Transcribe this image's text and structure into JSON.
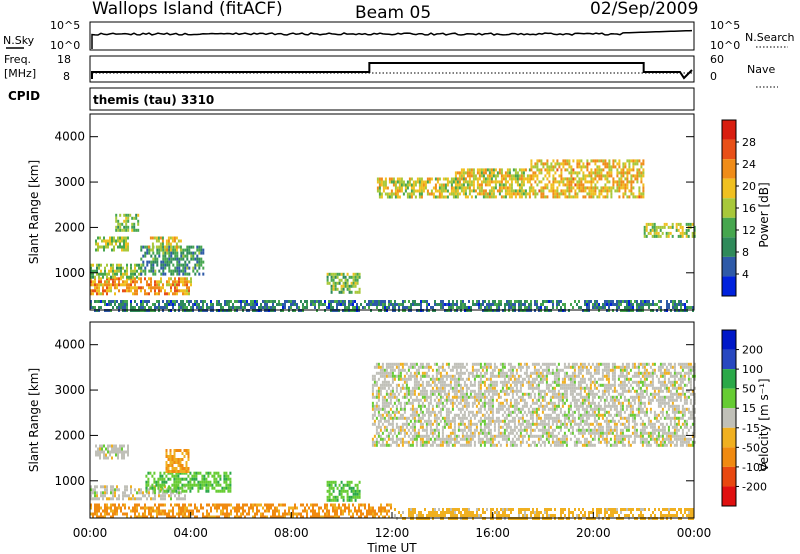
{
  "header": {
    "title": "Wallops Island (fitACF)",
    "beam": "Beam 05",
    "date": "02/Sep/2009"
  },
  "strips": {
    "nsky_label": "N.Sky",
    "nsearch_label": "N.Search",
    "nsky_ticks": [
      "10^5",
      "10^0"
    ],
    "nsearch_ticks": [
      "10^5",
      "10^0"
    ],
    "freq_label_1": "Freq.",
    "freq_label_2": "[MHz]",
    "freq_ticks": [
      "18",
      "8"
    ],
    "nave_label": "Nave",
    "nave_ticks": [
      "60",
      "0"
    ],
    "cpid_label": "CPID",
    "cpid_value": "themis (tau) 3310"
  },
  "colors": {
    "power": [
      "#0022dd",
      "#2e5aa8",
      "#2f8a5a",
      "#46a64e",
      "#a8c83a",
      "#f0c020",
      "#f08c18",
      "#e85018",
      "#d81e10"
    ],
    "velocity": [
      "#0018c8",
      "#2848c0",
      "#2aa848",
      "#66cc33",
      "#c0c0b8",
      "#f0b020",
      "#f08a10",
      "#e84810",
      "#e01010"
    ]
  },
  "chart_data": [
    {
      "type": "heatmap",
      "name": "power",
      "ylabel": "Slant Range [km]",
      "xlim": [
        "00:00",
        "24:00"
      ],
      "ylim": [
        180,
        4500
      ],
      "yticks": [
        "1000",
        "2000",
        "3000",
        "4000"
      ],
      "colorbar": {
        "label": "Power [dB]",
        "min": 0,
        "max": 32,
        "ticks": [
          "4",
          "8",
          "12",
          "16",
          "20",
          "24",
          "28"
        ]
      },
      "regions": [
        {
          "hours": [
            0.0,
            4.0
          ],
          "range_km": [
            550,
            900
          ],
          "value": 22
        },
        {
          "hours": [
            0.0,
            2.0
          ],
          "range_km": [
            900,
            1200
          ],
          "value": 14
        },
        {
          "hours": [
            2.0,
            4.5
          ],
          "range_km": [
            1000,
            1600
          ],
          "value": 10
        },
        {
          "hours": [
            0.2,
            1.5
          ],
          "range_km": [
            1500,
            1800
          ],
          "value": 16
        },
        {
          "hours": [
            1.0,
            1.9
          ],
          "range_km": [
            1950,
            2300
          ],
          "value": 14
        },
        {
          "hours": [
            2.3,
            3.6
          ],
          "range_km": [
            1500,
            1800
          ],
          "value": 18
        },
        {
          "hours": [
            9.4,
            10.7
          ],
          "range_km": [
            600,
            1000
          ],
          "value": 14
        },
        {
          "hours": [
            11.4,
            14.6
          ],
          "range_km": [
            2700,
            3100
          ],
          "value": 18
        },
        {
          "hours": [
            14.5,
            17.5
          ],
          "range_km": [
            2700,
            3300
          ],
          "value": 18
        },
        {
          "hours": [
            17.5,
            22.0
          ],
          "range_km": [
            2700,
            3500
          ],
          "value": 20
        },
        {
          "hours": [
            22.0,
            24.0
          ],
          "range_km": [
            1800,
            2100
          ],
          "value": 16
        },
        {
          "hours": [
            0.0,
            24.0
          ],
          "range_km": [
            200,
            400
          ],
          "value": 8
        }
      ]
    },
    {
      "type": "heatmap",
      "name": "velocity",
      "xlabel": "Time UT",
      "ylabel": "Slant Range [km]",
      "xlim": [
        "00:00",
        "24:00"
      ],
      "ylim": [
        180,
        4500
      ],
      "yticks": [
        "1000",
        "2000",
        "3000",
        "4000"
      ],
      "xticks": [
        "00:00",
        "04:00",
        "08:00",
        "12:00",
        "16:00",
        "20:00",
        "00:00"
      ],
      "colorbar": {
        "label": "Velocity [m s⁻¹]",
        "min": -250,
        "max": 250,
        "ticks": [
          "200",
          "100",
          "50",
          "15",
          "-15",
          "-50",
          "-100",
          "-200"
        ]
      },
      "regions": [
        {
          "hours": [
            0.0,
            3.8
          ],
          "range_km": [
            600,
            900
          ],
          "value": 0
        },
        {
          "hours": [
            2.2,
            5.6
          ],
          "range_km": [
            800,
            1200
          ],
          "value": 40
        },
        {
          "hours": [
            0.2,
            1.5
          ],
          "range_km": [
            1500,
            1800
          ],
          "value": 0
        },
        {
          "hours": [
            3.0,
            3.9
          ],
          "range_km": [
            1200,
            1700
          ],
          "value": -50
        },
        {
          "hours": [
            9.4,
            10.7
          ],
          "range_km": [
            600,
            1000
          ],
          "value": 40
        },
        {
          "hours": [
            11.2,
            24.0
          ],
          "range_km": [
            1800,
            3600
          ],
          "value": 0
        },
        {
          "hours": [
            0.0,
            12.0
          ],
          "range_km": [
            200,
            500
          ],
          "value": -60
        },
        {
          "hours": [
            12.0,
            24.0
          ],
          "range_km": [
            200,
            400
          ],
          "value": -30
        }
      ]
    }
  ]
}
